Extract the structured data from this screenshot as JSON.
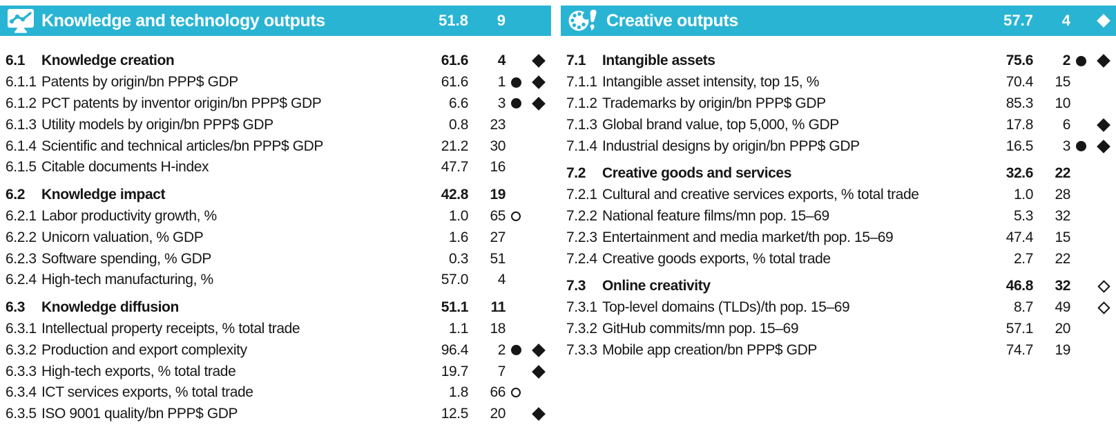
{
  "colors": {
    "accent": "#29B4D4",
    "ink": "#161616"
  },
  "panels": [
    {
      "id": "knowledge-and-technology-outputs",
      "icon": "monitor-line-chart-icon",
      "title": "Knowledge and technology outputs",
      "score": "51.8",
      "rank": "9",
      "markers": {},
      "groups": [
        {
          "num": "6.1",
          "label": "Knowledge creation",
          "score": "61.6",
          "rank": "4",
          "markers": {
            "diamond": "filled"
          },
          "rows": [
            {
              "num": "6.1.1",
              "label": "Patents by origin/bn PPP$ GDP",
              "score": "61.6",
              "rank": "1",
              "markers": {
                "circle": "filled",
                "diamond": "filled"
              }
            },
            {
              "num": "6.1.2",
              "label": "PCT patents by inventor origin/bn PPP$ GDP",
              "score": "6.6",
              "rank": "3",
              "markers": {
                "circle": "filled",
                "diamond": "filled"
              }
            },
            {
              "num": "6.1.3",
              "label": "Utility models by origin/bn PPP$ GDP",
              "score": "0.8",
              "rank": "23",
              "markers": {}
            },
            {
              "num": "6.1.4",
              "label": "Scientific and technical articles/bn PPP$ GDP",
              "score": "21.2",
              "rank": "30",
              "markers": {}
            },
            {
              "num": "6.1.5",
              "label": "Citable documents H-index",
              "score": "47.7",
              "rank": "16",
              "markers": {}
            }
          ]
        },
        {
          "num": "6.2",
          "label": "Knowledge impact",
          "score": "42.8",
          "rank": "19",
          "markers": {},
          "rows": [
            {
              "num": "6.2.1",
              "label": "Labor productivity growth, %",
              "score": "1.0",
              "rank": "65",
              "markers": {
                "circle": "open"
              }
            },
            {
              "num": "6.2.2",
              "label": "Unicorn valuation, % GDP",
              "score": "1.6",
              "rank": "27",
              "markers": {}
            },
            {
              "num": "6.2.3",
              "label": "Software spending, % GDP",
              "score": "0.3",
              "rank": "51",
              "markers": {}
            },
            {
              "num": "6.2.4",
              "label": "High-tech manufacturing, %",
              "score": "57.0",
              "rank": "4",
              "markers": {}
            }
          ]
        },
        {
          "num": "6.3",
          "label": "Knowledge diffusion",
          "score": "51.1",
          "rank": "11",
          "markers": {},
          "rows": [
            {
              "num": "6.3.1",
              "label": "Intellectual property receipts, % total trade",
              "score": "1.1",
              "rank": "18",
              "markers": {}
            },
            {
              "num": "6.3.2",
              "label": "Production and export complexity",
              "score": "96.4",
              "rank": "2",
              "markers": {
                "circle": "filled",
                "diamond": "filled"
              }
            },
            {
              "num": "6.3.3",
              "label": "High-tech exports, % total trade",
              "score": "19.7",
              "rank": "7",
              "markers": {
                "diamond": "filled"
              }
            },
            {
              "num": "6.3.4",
              "label": "ICT services exports, % total trade",
              "score": "1.8",
              "rank": "66",
              "markers": {
                "circle": "open"
              }
            },
            {
              "num": "6.3.5",
              "label": "ISO 9001 quality/bn PPP$ GDP",
              "score": "12.5",
              "rank": "20",
              "markers": {
                "diamond": "filled"
              }
            }
          ]
        }
      ]
    },
    {
      "id": "creative-outputs",
      "icon": "palette-exclamation-icon",
      "title": "Creative outputs",
      "score": "57.7",
      "rank": "4",
      "markers": {
        "diamond": "filled"
      },
      "groups": [
        {
          "num": "7.1",
          "label": "Intangible assets",
          "score": "75.6",
          "rank": "2",
          "markers": {
            "circle": "filled",
            "diamond": "filled"
          },
          "rows": [
            {
              "num": "7.1.1",
              "label": "Intangible asset intensity, top 15, %",
              "score": "70.4",
              "rank": "15",
              "markers": {}
            },
            {
              "num": "7.1.2",
              "label": "Trademarks by origin/bn PPP$ GDP",
              "score": "85.3",
              "rank": "10",
              "markers": {}
            },
            {
              "num": "7.1.3",
              "label": "Global brand value, top 5,000, % GDP",
              "score": "17.8",
              "rank": "6",
              "markers": {
                "diamond": "filled"
              }
            },
            {
              "num": "7.1.4",
              "label": "Industrial designs by origin/bn PPP$ GDP",
              "score": "16.5",
              "rank": "3",
              "markers": {
                "circle": "filled",
                "diamond": "filled"
              }
            }
          ]
        },
        {
          "num": "7.2",
          "label": "Creative goods and services",
          "score": "32.6",
          "rank": "22",
          "markers": {},
          "rows": [
            {
              "num": "7.2.1",
              "label": "Cultural and creative services exports, % total trade",
              "score": "1.0",
              "rank": "28",
              "markers": {}
            },
            {
              "num": "7.2.2",
              "label": "National feature films/mn pop. 15–69",
              "score": "5.3",
              "rank": "32",
              "markers": {}
            },
            {
              "num": "7.2.3",
              "label": "Entertainment and media market/th pop. 15–69",
              "score": "47.4",
              "rank": "15",
              "markers": {}
            },
            {
              "num": "7.2.4",
              "label": "Creative goods exports, % total trade",
              "score": "2.7",
              "rank": "22",
              "markers": {}
            }
          ]
        },
        {
          "num": "7.3",
          "label": "Online creativity",
          "score": "46.8",
          "rank": "32",
          "markers": {
            "diamond": "open"
          },
          "rows": [
            {
              "num": "7.3.1",
              "label": "Top-level domains (TLDs)/th pop. 15–69",
              "score": "8.7",
              "rank": "49",
              "markers": {
                "diamond": "open"
              }
            },
            {
              "num": "7.3.2",
              "label": "GitHub commits/mn pop. 15–69",
              "score": "57.1",
              "rank": "20",
              "markers": {}
            },
            {
              "num": "7.3.3",
              "label": "Mobile app creation/bn PPP$ GDP",
              "score": "74.7",
              "rank": "19",
              "markers": {}
            }
          ]
        }
      ]
    }
  ]
}
